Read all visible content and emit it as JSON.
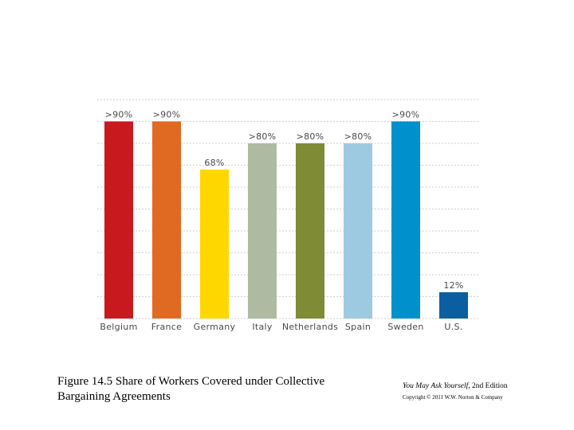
{
  "chart_data": {
    "type": "bar",
    "title": "Share of Workers Covered under Collective Bargaining Agreements",
    "categories": [
      "Belgium",
      "France",
      "Germany",
      "Italy",
      "Netherlands",
      "Spain",
      "Sweden",
      "U.S."
    ],
    "values": [
      90,
      90,
      68,
      80,
      80,
      80,
      90,
      12
    ],
    "value_labels": [
      ">90%",
      ">90%",
      "68%",
      ">80%",
      ">80%",
      ">80%",
      ">90%",
      "12%"
    ],
    "colors": [
      "#c8191f",
      "#e06a22",
      "#ffd700",
      "#aebba2",
      "#7f8b35",
      "#9ecae1",
      "#0090cc",
      "#0b5fa0"
    ],
    "ylim": [
      0,
      100
    ],
    "grid": true,
    "xlabel": "",
    "ylabel": ""
  },
  "caption": {
    "line1": "Figure 14.5 Share of Workers Covered under Collective",
    "line2": "Bargaining Agreements"
  },
  "credit": {
    "book": "You May Ask Yourself,",
    "edition": " 2nd Edition",
    "copyright": "Copyright © 2011 W.W. Norton & Company"
  }
}
